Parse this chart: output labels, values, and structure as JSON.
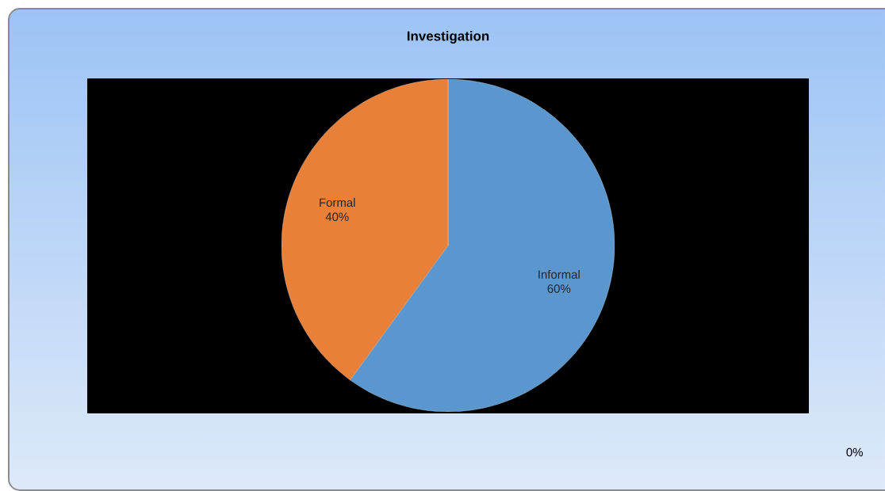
{
  "chart_data": {
    "type": "pie",
    "title": "Investigation",
    "categories": [
      "Informal",
      "Formal"
    ],
    "values": [
      60,
      40
    ],
    "colors": [
      "#5b97cf",
      "#e8803a"
    ],
    "value_labels": [
      "60%",
      "40%"
    ],
    "annotations": [
      "0%"
    ]
  }
}
